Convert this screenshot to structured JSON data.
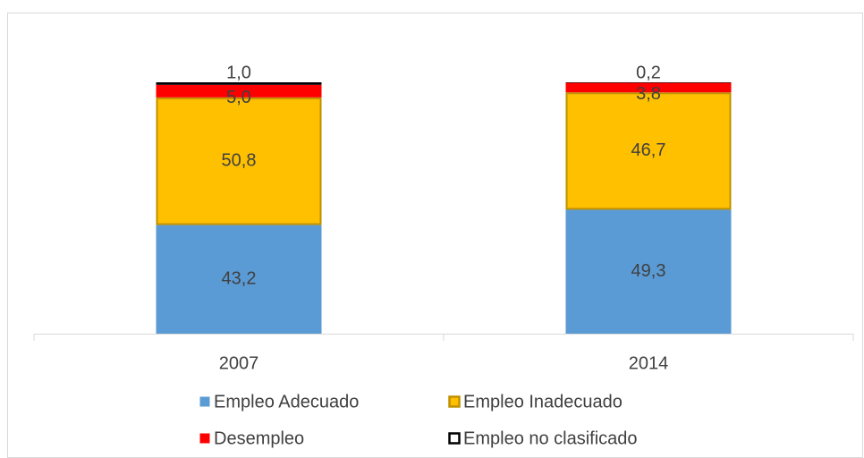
{
  "chart_data": {
    "type": "bar",
    "stacked": true,
    "categories": [
      "2007",
      "2014"
    ],
    "series": [
      {
        "name": "Empleo Adecuado",
        "color": "#5b9bd5",
        "values": [
          43.2,
          49.3
        ],
        "value_labels": [
          "43,2",
          "49,3"
        ]
      },
      {
        "name": "Empleo Inadecuado",
        "color": "#ffc000",
        "values": [
          50.8,
          46.7
        ],
        "value_labels": [
          "50,8",
          "46,7"
        ]
      },
      {
        "name": "Desempleo",
        "color": "#ff0000",
        "values": [
          5.0,
          3.8
        ],
        "value_labels": [
          "5,0",
          "3,8"
        ]
      },
      {
        "name": "Empleo no clasificado",
        "color": "#000000",
        "values": [
          1.0,
          0.2
        ],
        "value_labels": [
          "1,0",
          "0,2"
        ]
      }
    ]
  }
}
